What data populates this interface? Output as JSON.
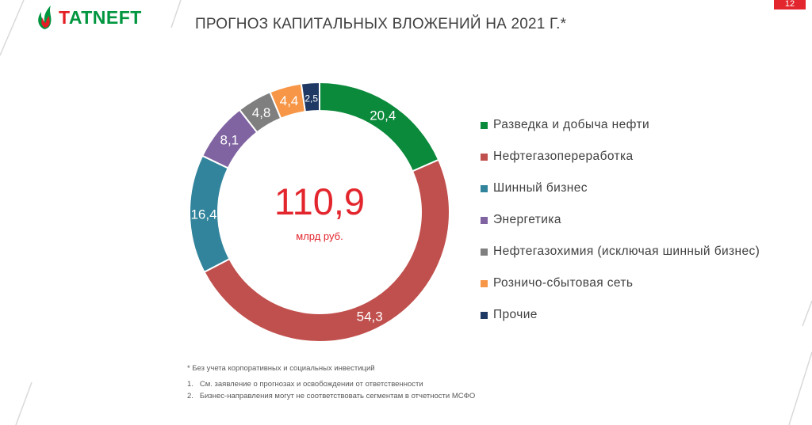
{
  "header": {
    "logo_text_first": "T",
    "logo_text_rest": "ATNEFT",
    "title": "ПРОГНОЗ КАПИТАЛЬНЫХ ВЛОЖЕНИЙ НА 2021 Г.*",
    "page_number": "12"
  },
  "colors": {
    "brand_green": "#00963f",
    "brand_red": "#e31e24"
  },
  "chart_data": {
    "type": "pie",
    "donut": true,
    "total_value": "110,9",
    "total_unit": "млрд руб.",
    "legend_position": "right",
    "series": [
      {
        "name": "Разведка и добыча нефти",
        "value": 20.4,
        "label": "20,4",
        "color": "#0b8a3b"
      },
      {
        "name": "Нефтегазопереработка",
        "value": 54.3,
        "label": "54,3",
        "color": "#c0504d"
      },
      {
        "name": "Шинный бизнес",
        "value": 16.4,
        "label": "16,4",
        "color": "#31849b"
      },
      {
        "name": "Энергетика",
        "value": 8.1,
        "label": "8,1",
        "color": "#8064a2"
      },
      {
        "name": "Нефтегазохимия (исключая шинный бизнес)",
        "value": 4.8,
        "label": "4,8",
        "color": "#7f7f7f"
      },
      {
        "name": "Розничо-сбытовая сеть",
        "value": 4.4,
        "label": "4,4",
        "color": "#f79646"
      },
      {
        "name": "Прочие",
        "value": 2.5,
        "label": "2,5",
        "color": "#1f3864"
      }
    ]
  },
  "footnotes": {
    "main": "* Без учета корпоративных и социальных инвестиций",
    "items": [
      {
        "num": "1.",
        "text": "См. заявление о прогнозах и освобождении от ответственности"
      },
      {
        "num": "2.",
        "text": "Бизнес-направления могут не соответствовать сегментам в отчетности МСФО"
      }
    ]
  }
}
